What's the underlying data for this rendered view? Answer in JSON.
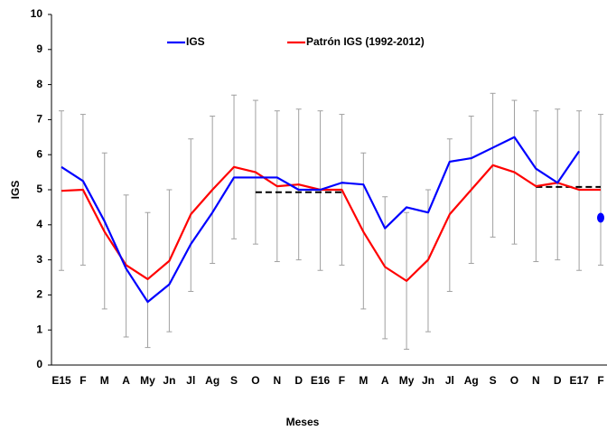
{
  "chart_data": {
    "type": "line",
    "y_label": "IGS",
    "x_label": "Meses",
    "categories": [
      "E15",
      "F",
      "M",
      "A",
      "My",
      "Jn",
      "Jl",
      "Ag",
      "S",
      "O",
      "N",
      "D",
      "E16",
      "F",
      "M",
      "A",
      "My",
      "Jn",
      "Jl",
      "Ag",
      "S",
      "O",
      "N",
      "D",
      "E17",
      "F"
    ],
    "ylim": [
      0,
      10
    ],
    "yticks": [
      0,
      1,
      2,
      3,
      4,
      5,
      6,
      7,
      8,
      9,
      10
    ],
    "legend": "top",
    "series": [
      {
        "name": "IGS",
        "color": "#0000ff",
        "values": [
          5.65,
          5.25,
          4.1,
          2.75,
          1.8,
          2.3,
          3.45,
          4.35,
          5.35,
          5.35,
          5.35,
          5.0,
          5.0,
          5.2,
          5.15,
          3.9,
          4.5,
          4.35,
          5.8,
          5.9,
          6.2,
          6.5,
          5.6,
          5.2,
          6.1,
          null
        ]
      },
      {
        "name": "Patrón IGS (1992-2012)",
        "color": "#ff0000",
        "values": [
          4.97,
          5.0,
          3.8,
          2.85,
          2.45,
          2.97,
          4.3,
          5.0,
          5.65,
          5.5,
          5.1,
          5.15,
          5.0,
          5.0,
          3.8,
          2.8,
          2.4,
          3.0,
          4.3,
          5.0,
          5.7,
          5.5,
          5.1,
          5.2,
          5.0,
          5.0
        ],
        "error_low": [
          2.7,
          2.85,
          1.6,
          0.8,
          0.5,
          0.95,
          2.1,
          2.9,
          3.6,
          3.45,
          2.95,
          3.0,
          2.7,
          2.85,
          1.6,
          0.75,
          0.45,
          0.95,
          2.1,
          2.9,
          3.65,
          3.45,
          2.95,
          3.0,
          2.7,
          2.85
        ],
        "error_high": [
          7.25,
          7.15,
          6.05,
          4.85,
          4.35,
          5.0,
          6.45,
          7.1,
          7.7,
          7.55,
          7.25,
          7.3,
          7.25,
          7.15,
          6.05,
          4.8,
          4.35,
          5.0,
          6.45,
          7.1,
          7.75,
          7.55,
          7.25,
          7.3,
          7.25,
          7.15
        ],
        "error_color": "#a0a0a0"
      },
      {
        "color": "#0000ff",
        "style": "marker",
        "values": [
          null,
          null,
          null,
          null,
          null,
          null,
          null,
          null,
          null,
          null,
          null,
          null,
          null,
          null,
          null,
          null,
          null,
          null,
          null,
          null,
          null,
          null,
          null,
          null,
          null,
          4.2
        ]
      }
    ],
    "reference_lines": [
      {
        "start": 9,
        "end": 13,
        "value": 4.93,
        "color": "#000000"
      },
      {
        "start": 22,
        "end": 25,
        "value": 5.08,
        "color": "#000000"
      }
    ]
  }
}
